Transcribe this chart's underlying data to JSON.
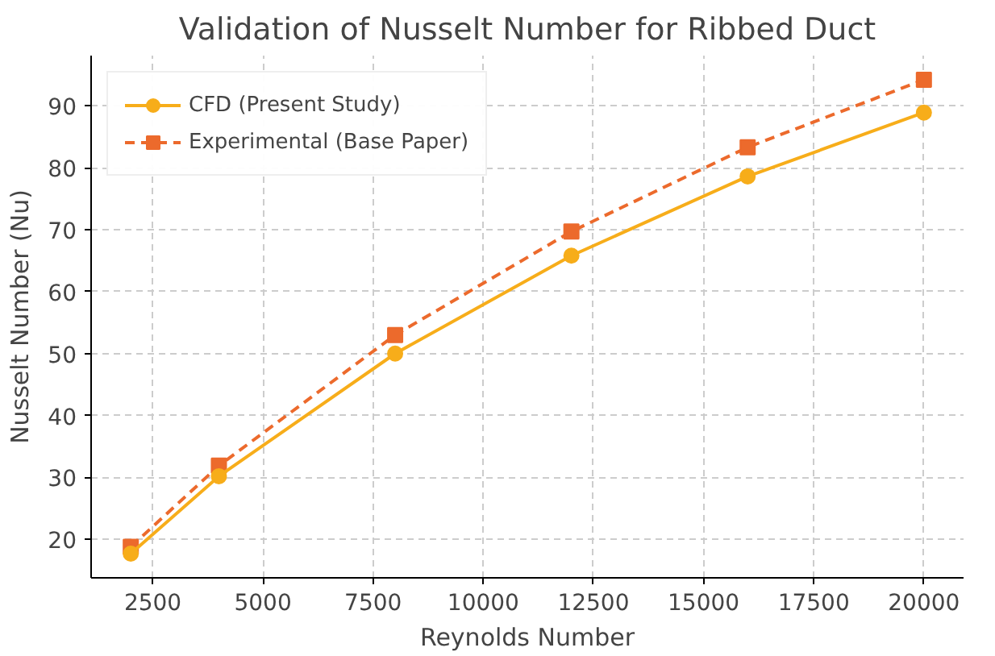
{
  "chart_data": {
    "type": "line",
    "title": "Validation of Nusselt Number for Ribbed Duct",
    "xlabel": "Reynolds Number",
    "ylabel": "Nusselt Number (Nu)",
    "x": [
      2000,
      4000,
      8000,
      12000,
      16000,
      20000
    ],
    "series": [
      {
        "name": "CFD (Present Study)",
        "color": "#f7ad1a",
        "values": [
          17.7,
          30.2,
          50,
          65.8,
          78.6,
          88.9
        ],
        "marker": "circle",
        "line_style": "solid"
      },
      {
        "name": "Experimental (Base Paper)",
        "color": "#ec6a2c",
        "values": [
          18.8,
          31.9,
          53,
          69.7,
          83.3,
          94.2
        ],
        "marker": "square",
        "line_style": "dashed"
      }
    ],
    "xlim": [
      1100,
      20900
    ],
    "ylim": [
      13.8,
      98.1
    ],
    "xticks": [
      2500,
      5000,
      7500,
      10000,
      12500,
      15000,
      17500,
      20000
    ],
    "yticks": [
      20,
      30,
      40,
      50,
      60,
      70,
      80,
      90
    ],
    "grid": true,
    "legend": "top left"
  }
}
